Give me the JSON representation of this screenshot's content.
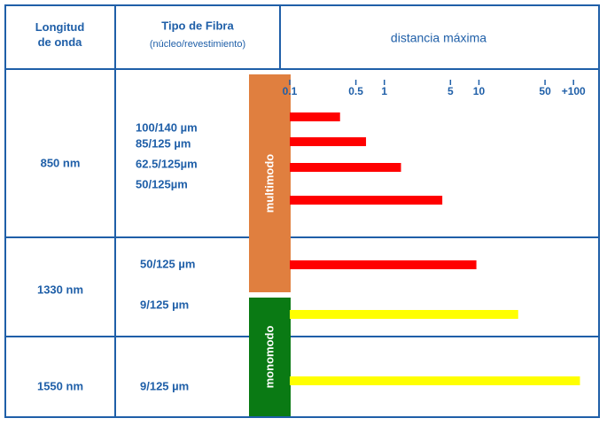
{
  "header": {
    "wavelength": "Longitud de onda",
    "fiber": "Tipo de Fibra",
    "fiber_note": "(núcleo/revestimiento)",
    "distance": "distancia máxima"
  },
  "wavelengths": [
    "850 nm",
    "1330 nm",
    "1550 nm"
  ],
  "modes": [
    "multimodo",
    "monomodo"
  ],
  "chart_data": {
    "type": "hbar",
    "categories": [
      "100/140 µm",
      "85/125 µm",
      "62.5/125µm",
      "50/125µm",
      "50/125 µm",
      "9/125 µm",
      "9/125 µm"
    ],
    "values": [
      0.34,
      0.64,
      1.5,
      4.1,
      9.4,
      26,
      117
    ],
    "colors": [
      "#ff0000",
      "#ff0000",
      "#ff0000",
      "#ff0000",
      "#ff0000",
      "#ffff00",
      "#ffff00"
    ],
    "log_scale": true,
    "xlim": [
      0.1,
      150
    ],
    "xticks": [
      0.1,
      0.5,
      1,
      5,
      10,
      50,
      {
        "value": 100,
        "label": "+100"
      }
    ]
  }
}
